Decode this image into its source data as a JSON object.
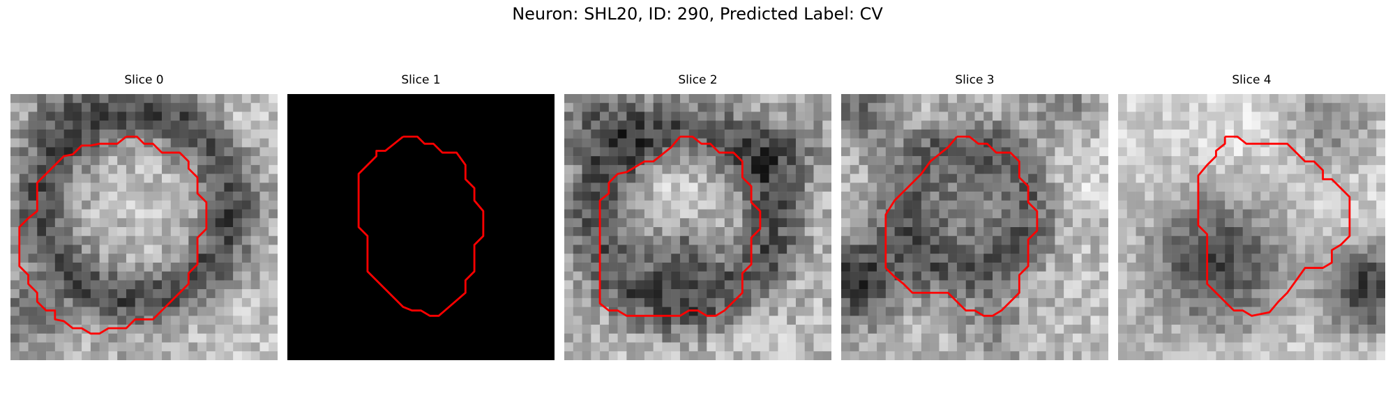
{
  "figure": {
    "suptitle": "Neuron: SHL20, ID: 290, Predicted Label: CV"
  },
  "panels": [
    {
      "title": "Slice 0",
      "image": "grayscale-microscopy-slice-with-red-contour"
    },
    {
      "title": "Slice 1",
      "image": "black-mask-with-red-contour"
    },
    {
      "title": "Slice 2",
      "image": "grayscale-microscopy-slice-with-red-contour"
    },
    {
      "title": "Slice 3",
      "image": "grayscale-microscopy-slice-with-red-contour"
    },
    {
      "title": "Slice 4",
      "image": "grayscale-microscopy-slice-with-red-contour"
    }
  ],
  "colors": {
    "contour": "#ff0000",
    "background": "#ffffff",
    "mask": "#000000"
  }
}
